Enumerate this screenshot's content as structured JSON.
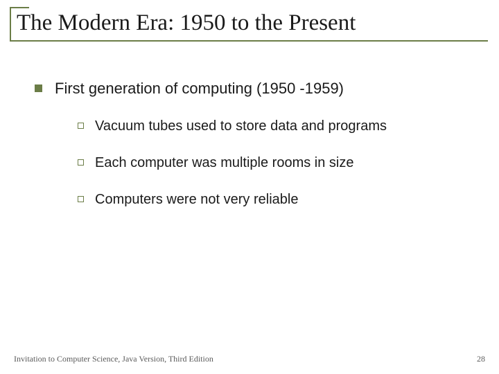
{
  "title": "The Modern Era: 1950 to the Present",
  "level1": "First generation of computing (1950 -1959)",
  "sub": {
    "a": "Vacuum tubes used to store data and programs",
    "b": "Each computer was multiple rooms in size",
    "c": "Computers were not very reliable"
  },
  "footer": {
    "text": "Invitation to Computer Science, Java Version, Third Edition",
    "page": "28"
  },
  "colors": {
    "accent": "#6b7d47",
    "text": "#1a1a1a",
    "footer_text": "#5a5a5a",
    "background": "#ffffff"
  },
  "fonts": {
    "title_family": "Times New Roman",
    "title_size_pt": 33,
    "body_family": "Arial",
    "level1_size_pt": 22,
    "level2_size_pt": 20,
    "footer_size_pt": 12
  }
}
